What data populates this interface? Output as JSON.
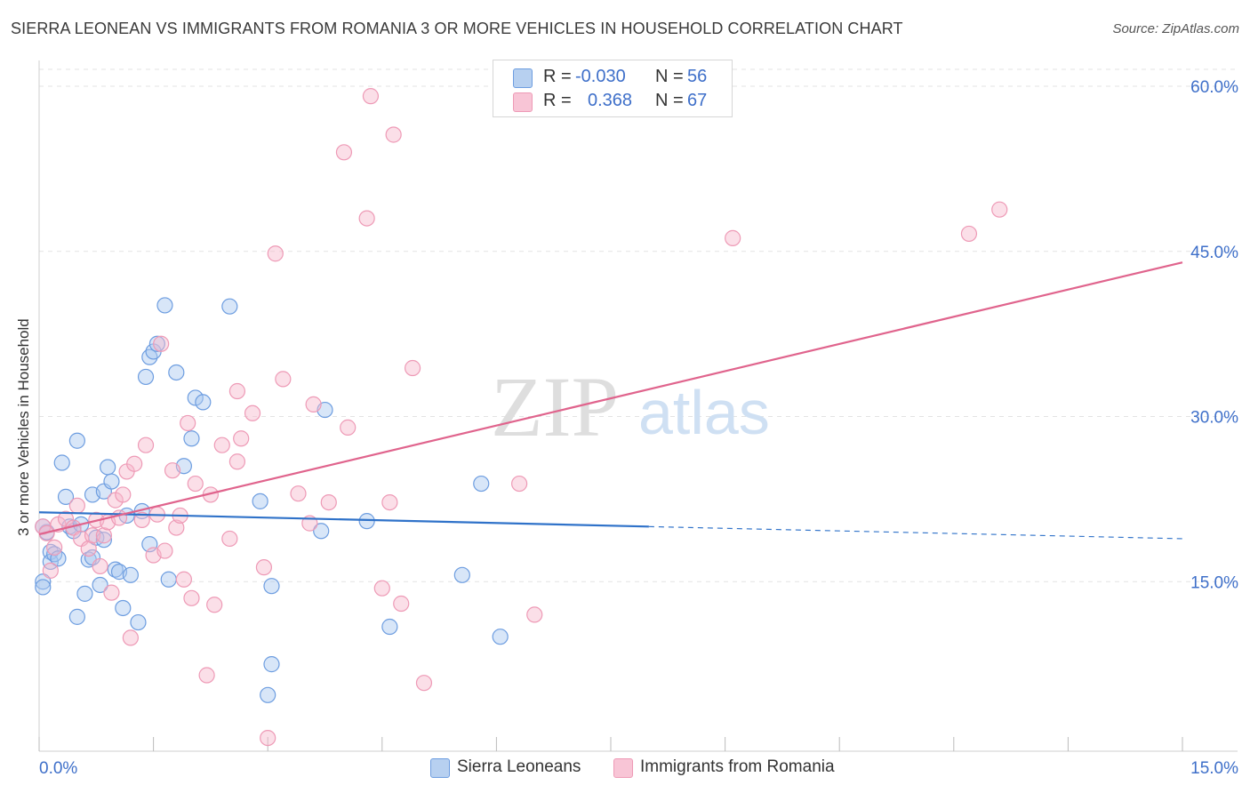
{
  "title": "SIERRA LEONEAN VS IMMIGRANTS FROM ROMANIA 3 OR MORE VEHICLES IN HOUSEHOLD CORRELATION CHART",
  "source": "Source: ZipAtlas.com",
  "watermark": {
    "zip": "ZIP",
    "atlas": "atlas"
  },
  "legend": {
    "series1": {
      "r_label": "R =",
      "r_value": "-0.030",
      "n_label": "N =",
      "n_value": "56"
    },
    "series2": {
      "r_label": "R =",
      "r_value": "0.368",
      "n_label": "N =",
      "n_value": "67"
    }
  },
  "colors": {
    "series1_fill": "#a9c8f0",
    "series1_stroke": "#6d9de0",
    "series1_line": "#2f72c9",
    "series2_fill": "#f6b9cd",
    "series2_stroke": "#ee9ab6",
    "series2_line": "#e0648d",
    "tick_label": "#3e6fc9",
    "grid": "#e3e3e3"
  },
  "chart_data": {
    "type": "scatter",
    "title": "SIERRA LEONEAN VS IMMIGRANTS FROM ROMANIA 3 OR MORE VEHICLES IN HOUSEHOLD CORRELATION CHART",
    "xlabel": "",
    "ylabel": "3 or more Vehicles in Household",
    "xlim": [
      0,
      15
    ],
    "ylim": [
      0,
      60
    ],
    "x_tick_labels": [
      "0.0%",
      "15.0%"
    ],
    "y_ticks": [
      15,
      30,
      45,
      60
    ],
    "y_tick_labels": [
      "15.0%",
      "30.0%",
      "45.0%",
      "60.0%"
    ],
    "grid": true,
    "legend_position": "top-center",
    "series": [
      {
        "name": "Sierra Leoneans",
        "r": -0.03,
        "n": 56,
        "trend": {
          "x_start": 0,
          "y_start": 21.3,
          "x_end": 8.0,
          "y_end": 20.0,
          "dashed_to_x": 15.0,
          "dashed_to_y": 18.9
        },
        "points": [
          [
            0.05,
            15.0
          ],
          [
            0.05,
            14.5
          ],
          [
            0.1,
            19.5
          ],
          [
            0.15,
            17.7
          ],
          [
            0.15,
            16.8
          ],
          [
            0.2,
            17.5
          ],
          [
            0.25,
            17.1
          ],
          [
            0.3,
            25.8
          ],
          [
            0.35,
            22.7
          ],
          [
            0.4,
            20.0
          ],
          [
            0.45,
            19.6
          ],
          [
            0.5,
            11.8
          ],
          [
            0.5,
            27.8
          ],
          [
            0.55,
            20.2
          ],
          [
            0.6,
            13.9
          ],
          [
            0.65,
            17.0
          ],
          [
            0.7,
            22.9
          ],
          [
            0.7,
            17.2
          ],
          [
            0.75,
            19.0
          ],
          [
            0.8,
            14.7
          ],
          [
            0.85,
            23.2
          ],
          [
            0.85,
            18.8
          ],
          [
            0.9,
            25.4
          ],
          [
            0.95,
            24.1
          ],
          [
            1.0,
            16.1
          ],
          [
            1.05,
            15.9
          ],
          [
            1.1,
            12.6
          ],
          [
            1.15,
            21.0
          ],
          [
            1.2,
            15.6
          ],
          [
            1.3,
            11.3
          ],
          [
            1.35,
            21.4
          ],
          [
            1.4,
            33.6
          ],
          [
            1.45,
            35.4
          ],
          [
            1.45,
            18.4
          ],
          [
            1.5,
            35.9
          ],
          [
            1.55,
            36.6
          ],
          [
            1.65,
            40.1
          ],
          [
            1.7,
            15.2
          ],
          [
            1.8,
            34.0
          ],
          [
            1.9,
            25.5
          ],
          [
            2.0,
            28.0
          ],
          [
            2.05,
            31.7
          ],
          [
            2.15,
            31.3
          ],
          [
            2.5,
            40.0
          ],
          [
            2.9,
            22.3
          ],
          [
            3.05,
            14.6
          ],
          [
            3.05,
            7.5
          ],
          [
            3.0,
            4.7
          ],
          [
            3.7,
            19.6
          ],
          [
            3.75,
            30.6
          ],
          [
            4.3,
            20.5
          ],
          [
            4.6,
            10.9
          ],
          [
            5.55,
            15.6
          ],
          [
            5.8,
            23.9
          ],
          [
            6.05,
            10.0
          ],
          [
            0.05,
            20.0
          ]
        ]
      },
      {
        "name": "Immigrants from Romania",
        "r": 0.368,
        "n": 67,
        "trend": {
          "x_start": 0,
          "y_start": 19.3,
          "x_end": 15.0,
          "y_end": 44.0
        },
        "points": [
          [
            0.05,
            20.0
          ],
          [
            0.1,
            19.4
          ],
          [
            0.15,
            16.0
          ],
          [
            0.2,
            18.1
          ],
          [
            0.25,
            20.2
          ],
          [
            0.35,
            20.7
          ],
          [
            0.45,
            19.9
          ],
          [
            0.5,
            21.9
          ],
          [
            0.55,
            18.9
          ],
          [
            0.65,
            18.0
          ],
          [
            0.7,
            19.2
          ],
          [
            0.75,
            20.6
          ],
          [
            0.8,
            16.4
          ],
          [
            0.85,
            19.2
          ],
          [
            0.9,
            20.4
          ],
          [
            0.95,
            14.0
          ],
          [
            1.0,
            22.4
          ],
          [
            1.05,
            20.8
          ],
          [
            1.1,
            22.9
          ],
          [
            1.15,
            25.0
          ],
          [
            1.2,
            9.9
          ],
          [
            1.25,
            25.7
          ],
          [
            1.35,
            20.6
          ],
          [
            1.4,
            27.4
          ],
          [
            1.5,
            17.4
          ],
          [
            1.55,
            21.1
          ],
          [
            1.6,
            36.6
          ],
          [
            1.65,
            17.8
          ],
          [
            1.75,
            25.1
          ],
          [
            1.8,
            19.9
          ],
          [
            1.85,
            21.0
          ],
          [
            1.9,
            15.2
          ],
          [
            1.95,
            29.4
          ],
          [
            2.0,
            13.5
          ],
          [
            2.05,
            23.9
          ],
          [
            2.2,
            6.5
          ],
          [
            2.25,
            22.9
          ],
          [
            2.3,
            12.9
          ],
          [
            2.4,
            27.4
          ],
          [
            2.5,
            18.9
          ],
          [
            2.6,
            32.3
          ],
          [
            2.6,
            25.9
          ],
          [
            2.65,
            28.0
          ],
          [
            2.8,
            30.3
          ],
          [
            2.95,
            16.3
          ],
          [
            3.0,
            0.8
          ],
          [
            3.1,
            44.8
          ],
          [
            3.2,
            33.4
          ],
          [
            3.4,
            23.0
          ],
          [
            3.55,
            20.3
          ],
          [
            3.6,
            31.1
          ],
          [
            3.8,
            22.2
          ],
          [
            4.0,
            54.0
          ],
          [
            4.05,
            29.0
          ],
          [
            4.3,
            48.0
          ],
          [
            4.35,
            59.1
          ],
          [
            4.5,
            14.4
          ],
          [
            4.6,
            22.2
          ],
          [
            4.65,
            55.6
          ],
          [
            4.75,
            13.0
          ],
          [
            4.9,
            34.4
          ],
          [
            5.05,
            5.8
          ],
          [
            6.3,
            23.9
          ],
          [
            6.5,
            12.0
          ],
          [
            9.1,
            46.2
          ],
          [
            12.2,
            46.6
          ],
          [
            12.6,
            48.8
          ]
        ]
      }
    ]
  },
  "bottom_legend": [
    {
      "label": "Sierra Leoneans"
    },
    {
      "label": "Immigrants from Romania"
    }
  ]
}
